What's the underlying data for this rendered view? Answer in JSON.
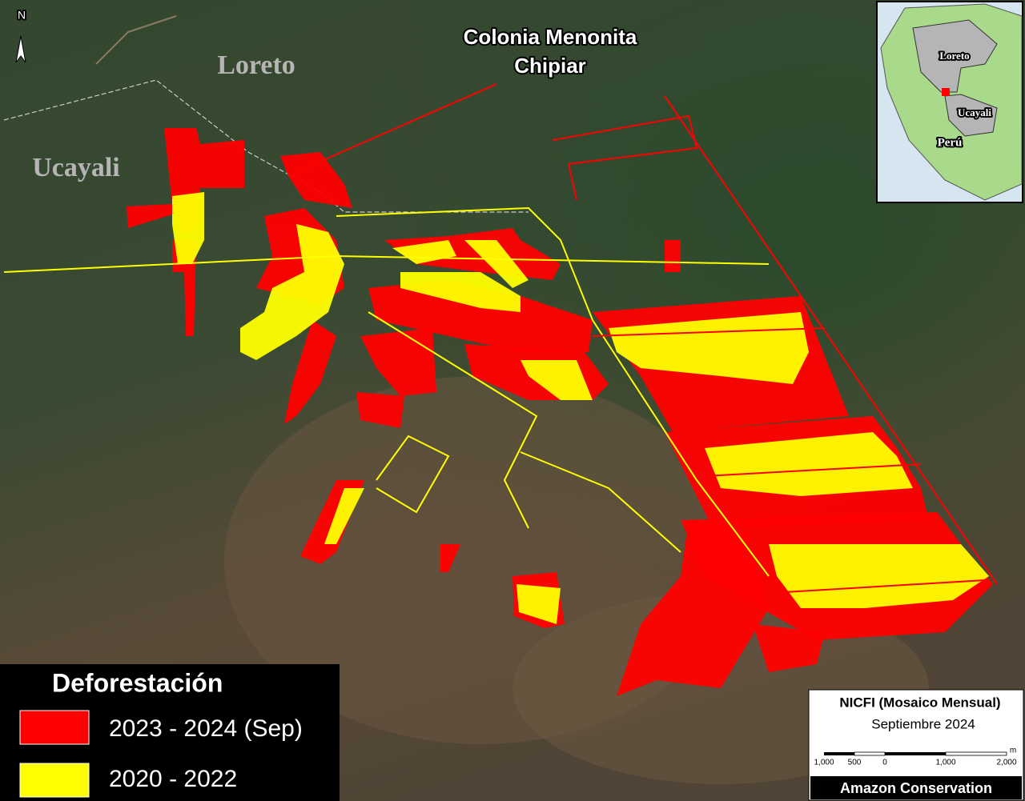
{
  "map": {
    "north": "N",
    "place_title": [
      "Colonia Menonita",
      "Chipiar"
    ],
    "region_labels": [
      "Loreto",
      "Ucayali"
    ]
  },
  "inset": {
    "labels": [
      "Loreto",
      "Ucayali",
      "Perú"
    ]
  },
  "legend": {
    "title": "Deforestación",
    "items": [
      {
        "label": "2023 - 2024 (Sep)",
        "color": "#ff0000"
      },
      {
        "label": "2020 - 2022",
        "color": "#ffff00"
      }
    ]
  },
  "source": {
    "imagery": "NICFI (Mosaico Mensual)",
    "date": "Septiembre 2024",
    "scale": [
      "1,000",
      "500",
      "0",
      "1,000",
      "2,000",
      "m"
    ],
    "credit": "Amazon Conservation"
  }
}
